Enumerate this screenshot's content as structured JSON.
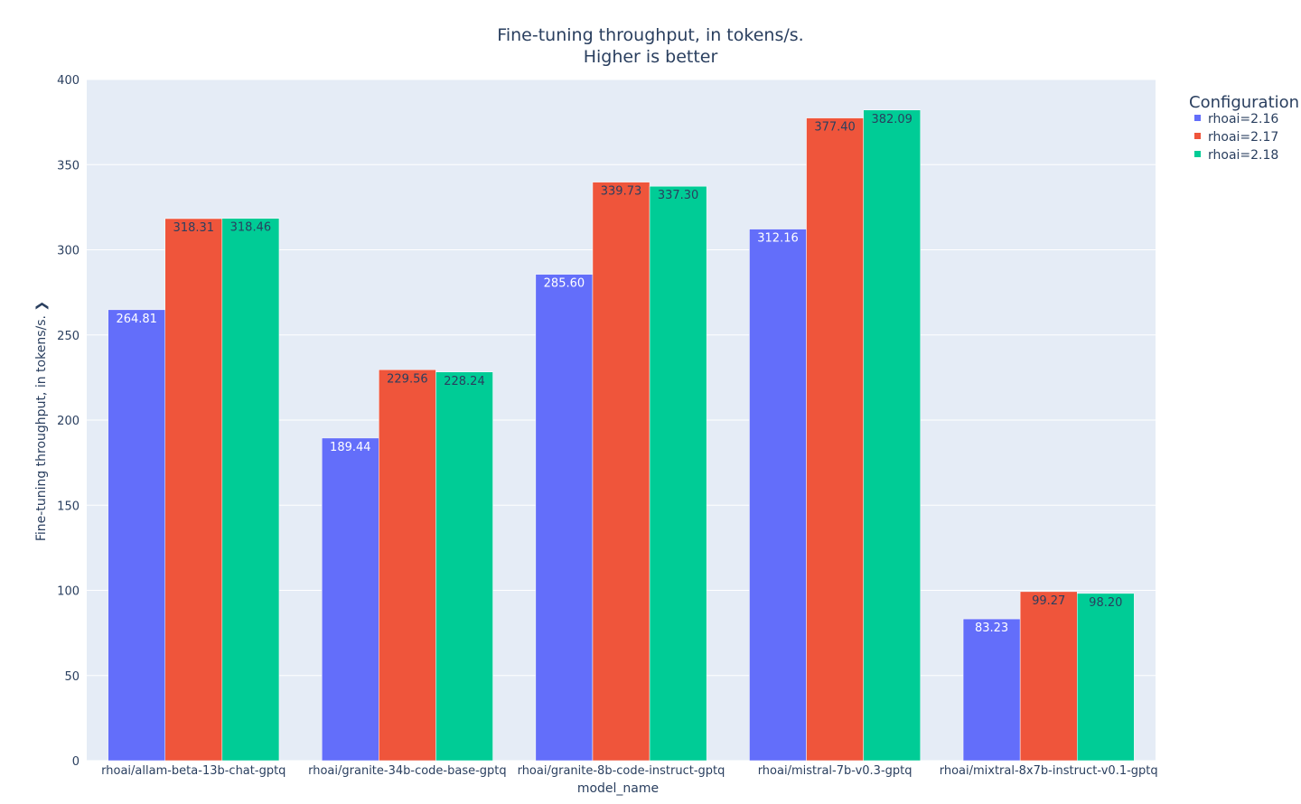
{
  "chart_data": {
    "type": "bar",
    "title": "Fine-tuning throughput, in tokens/s.",
    "subtitle": "Higher is better",
    "xlabel": "model_name",
    "ylabel": "Fine-tuning throughput, in tokens/s. ❯",
    "ylim": [
      0,
      400
    ],
    "yticks": [
      0,
      50,
      100,
      150,
      200,
      250,
      300,
      350,
      400
    ],
    "grid": true,
    "legend_title": "Configuration",
    "legend_position": "top-right",
    "categories": [
      "rhoai/allam-beta-13b-chat-gptq",
      "rhoai/granite-34b-code-base-gptq",
      "rhoai/granite-8b-code-instruct-gptq",
      "rhoai/mistral-7b-v0.3-gptq",
      "rhoai/mixtral-8x7b-instruct-v0.1-gptq"
    ],
    "series": [
      {
        "name": "rhoai=2.16",
        "color": "#636efa",
        "label_color": "#ffffff",
        "values": [
          264.81,
          189.44,
          285.6,
          312.16,
          83.23
        ],
        "labels": [
          "264.81",
          "189.44",
          "285.60",
          "312.16",
          "83.23"
        ]
      },
      {
        "name": "rhoai=2.17",
        "color": "#ef553b",
        "label_color": "#2a3f5f",
        "values": [
          318.31,
          229.56,
          339.73,
          377.4,
          99.27
        ],
        "labels": [
          "318.31",
          "229.56",
          "339.73",
          "377.40",
          "99.27"
        ]
      },
      {
        "name": "rhoai=2.18",
        "color": "#00cc96",
        "label_color": "#2a3f5f",
        "values": [
          318.46,
          228.24,
          337.3,
          382.09,
          98.2
        ],
        "labels": [
          "318.46",
          "228.24",
          "337.30",
          "382.09",
          "98.20"
        ]
      }
    ]
  },
  "colors": {
    "plot_background": "#e5ecf6",
    "gridline": "#ffffff",
    "text": "#2a3f5f",
    "axis_text": "#2a3f5f"
  }
}
